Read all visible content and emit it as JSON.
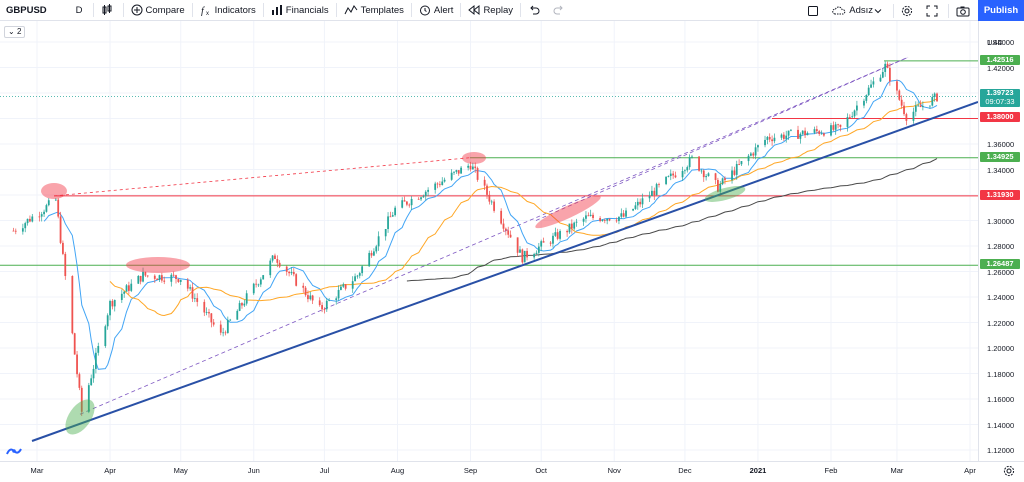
{
  "toolbar": {
    "symbol": "GBPUSD",
    "interval": "D",
    "compare": "Compare",
    "indicators": "Indicators",
    "financials": "Financials",
    "templates": "Templates",
    "alert": "Alert",
    "replay": "Replay",
    "layout_name": "Adsız",
    "publish": "Publish"
  },
  "legend_badge": "2",
  "price_axis": {
    "currency": "USD",
    "ticks": [
      "1.44000",
      "1.42000",
      "1.40000",
      "1.38000",
      "1.36000",
      "1.34000",
      "1.32000",
      "1.30000",
      "1.28000",
      "1.26000",
      "1.24000",
      "1.22000",
      "1.20000",
      "1.18000",
      "1.16000",
      "1.14000",
      "1.12000"
    ]
  },
  "price_tags": {
    "resistance_high": {
      "value": "1.42516",
      "color": "#4caf50"
    },
    "current_price": {
      "value": "1.39723",
      "countdown": "09:07:33",
      "color": "#26a69a"
    },
    "level_138": {
      "value": "1.38000",
      "color": "#f23645"
    },
    "level_1349": {
      "value": "1.34925",
      "color": "#4caf50"
    },
    "level_1319": {
      "value": "1.31930",
      "color": "#f23645"
    },
    "level_1264": {
      "value": "1.26487",
      "color": "#4caf50"
    }
  },
  "time_axis": [
    "Mar",
    "Apr",
    "May",
    "Jun",
    "Jul",
    "Aug",
    "Sep",
    "Oct",
    "Nov",
    "Dec",
    "2021",
    "Feb",
    "Mar",
    "Apr"
  ],
  "chart_data": {
    "type": "candlestick",
    "symbol": "GBPUSD",
    "interval": "D",
    "x_range": [
      "2020-02",
      "2021-04"
    ],
    "ylim": [
      1.12,
      1.44
    ],
    "close_path": [
      [
        "2020-02-20",
        1.292
      ],
      [
        "2020-03-09",
        1.316
      ],
      [
        "2020-03-20",
        1.15
      ],
      [
        "2020-04-01",
        1.235
      ],
      [
        "2020-04-15",
        1.257
      ],
      [
        "2020-05-01",
        1.255
      ],
      [
        "2020-05-18",
        1.21
      ],
      [
        "2020-06-10",
        1.272
      ],
      [
        "2020-06-29",
        1.23
      ],
      [
        "2020-07-15",
        1.257
      ],
      [
        "2020-07-31",
        1.309
      ],
      [
        "2020-09-01",
        1.344
      ],
      [
        "2020-09-23",
        1.271
      ],
      [
        "2020-10-20",
        1.302
      ],
      [
        "2020-11-05",
        1.303
      ],
      [
        "2020-12-04",
        1.348
      ],
      [
        "2020-12-15",
        1.326
      ],
      [
        "2021-01-05",
        1.365
      ],
      [
        "2021-02-05",
        1.372
      ],
      [
        "2021-02-24",
        1.421
      ],
      [
        "2021-03-05",
        1.382
      ],
      [
        "2021-03-18",
        1.397
      ]
    ],
    "horizontal_levels": [
      1.42516,
      1.38,
      1.34925,
      1.3193,
      1.26487
    ],
    "current_price": 1.39723,
    "moving_averages": [
      "blue",
      "orange",
      "dark-gray"
    ],
    "annotations": [
      "rising trendline",
      "upward channel",
      "highlight ellipses"
    ]
  }
}
